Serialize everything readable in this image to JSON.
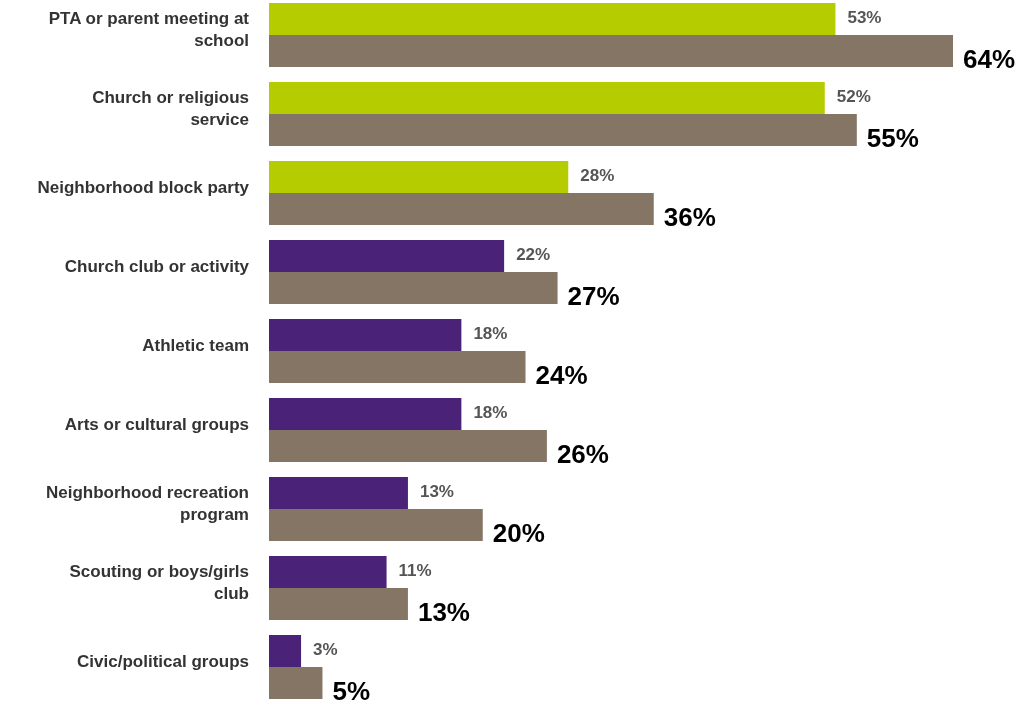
{
  "chart_data": {
    "type": "bar",
    "orientation": "horizontal",
    "categories": [
      "PTA or parent meeting at school",
      "Church or religious service",
      "Neighborhood block party",
      "Church club or activity",
      "Athletic team",
      "Arts or cultural groups",
      "Neighborhood recreation program",
      "Scouting or boys/girls club",
      "Civic/political groups"
    ],
    "series": [
      {
        "colors": [
          "#b5cc00",
          "#b5cc00",
          "#b5cc00",
          "#4a2278",
          "#4a2278",
          "#4a2278",
          "#4a2278",
          "#4a2278",
          "#4a2278"
        ],
        "values": [
          53,
          52,
          28,
          22,
          18,
          18,
          13,
          11,
          3
        ],
        "value_labels": [
          "53%",
          "52%",
          "28%",
          "22%",
          "18%",
          "18%",
          "13%",
          "11%",
          "3%"
        ]
      },
      {
        "color": "#857564",
        "values": [
          64,
          55,
          36,
          27,
          24,
          26,
          20,
          13,
          5
        ],
        "value_labels": [
          "64%",
          "55%",
          "36%",
          "27%",
          "24%",
          "26%",
          "20%",
          "13%",
          "5%"
        ]
      }
    ],
    "xlim": [
      0,
      64
    ],
    "tick_labels": "y"
  }
}
